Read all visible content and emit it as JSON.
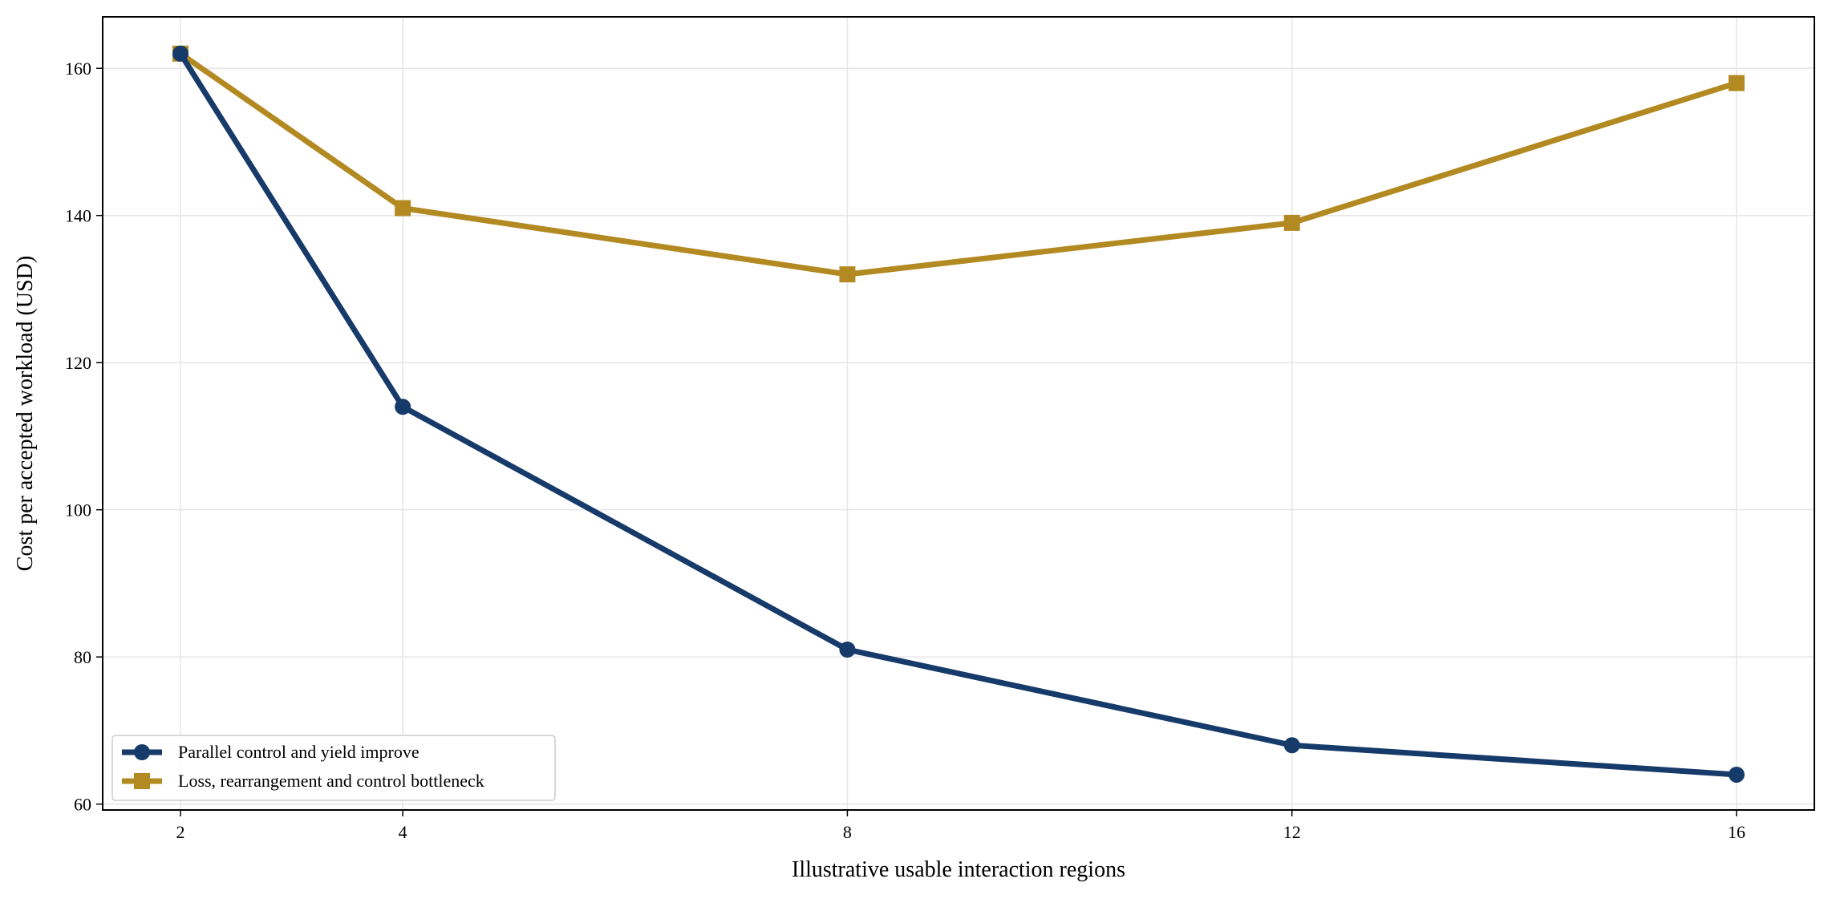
{
  "chart_data": {
    "type": "line",
    "title": "",
    "xlabel": "Illustrative usable interaction regions",
    "ylabel": "Cost per accepted workload (USD)",
    "x": [
      2,
      4,
      8,
      12,
      16
    ],
    "xticks": [
      2,
      4,
      8,
      12,
      16
    ],
    "xlim": [
      1.3,
      16.7
    ],
    "yticks": [
      60,
      80,
      100,
      120,
      140,
      160
    ],
    "ylim": [
      59.2,
      167
    ],
    "grid": true,
    "legend_position": "lower-left",
    "series": [
      {
        "name": "Parallel control and yield improve",
        "values": [
          162,
          114,
          81,
          68,
          64
        ],
        "color": "#163a69",
        "marker": "circle"
      },
      {
        "name": "Loss, rearrangement and control bottleneck",
        "values": [
          162,
          141,
          132,
          139,
          158
        ],
        "color": "#b38922",
        "marker": "square"
      }
    ]
  }
}
